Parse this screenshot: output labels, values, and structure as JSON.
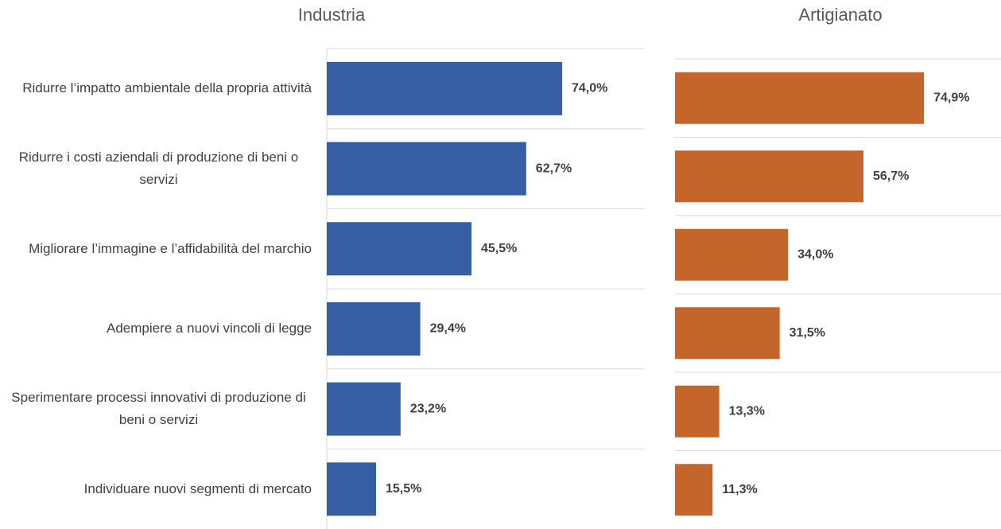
{
  "chart_data": [
    {
      "type": "bar",
      "title": "Industria",
      "categories": [
        "Ridurre l’impatto ambientale della propria attività",
        "Ridurre i costi aziendali di produzione di beni o servizi",
        "Migliorare l’immagine e l’affidabilità del marchio",
        "Adempiere a nuovi vincoli di legge",
        "Sperimentare processi innovativi di produzione di beni o servizi",
        "Individuare nuovi segmenti di mercato"
      ],
      "values": [
        74.0,
        62.7,
        45.5,
        29.4,
        23.2,
        15.5
      ],
      "value_labels": [
        "74,0%",
        "62,7%",
        "45,5%",
        "29,4%",
        "23,2%",
        "15,5%"
      ],
      "color": "#355ea3",
      "xlim": [
        0,
        100
      ]
    },
    {
      "type": "bar",
      "title": "Artigianato",
      "values": [
        74.9,
        56.7,
        34.0,
        31.5,
        13.3,
        11.3
      ],
      "value_labels": [
        "74,9%",
        "56,7%",
        "34,0%",
        "31,5%",
        "13,3%",
        "11,3%"
      ],
      "color": "#c4662b",
      "xlim": [
        0,
        100
      ]
    }
  ]
}
